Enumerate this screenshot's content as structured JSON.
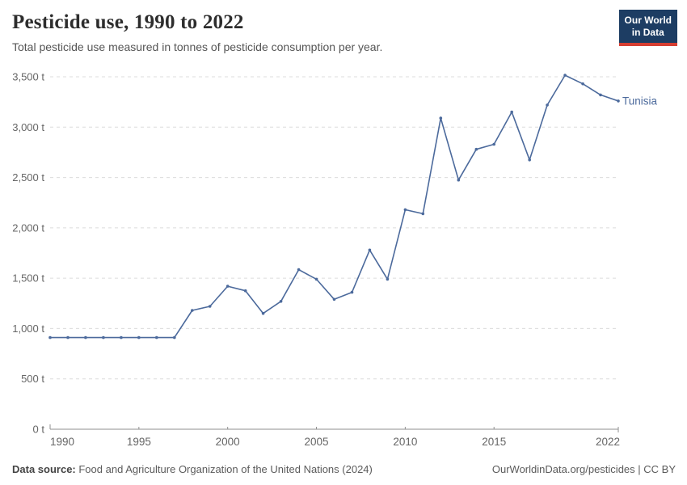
{
  "header": {
    "title": "Pesticide use, 1990 to 2022",
    "subtitle": "Total pesticide use measured in tonnes of pesticide consumption per year.",
    "logo": {
      "line1": "Our World",
      "line2": "in Data"
    }
  },
  "footer": {
    "source_label": "Data source:",
    "source_text": " Food and Agriculture Organization of the United Nations (2024)",
    "attribution": "OurWorldinData.org/pesticides | CC BY"
  },
  "colors": {
    "line": "#4C6A9C",
    "series_label": "#4C6A9C",
    "grid": "#dcdcdc",
    "axis": "#8f8f8f",
    "tick_text": "#666666",
    "title_text": "#2d2d2d",
    "subtitle_text": "#555555",
    "footer_text": "#5b5b5b",
    "logo_bg": "#1d3d63",
    "logo_red": "#d63e32"
  },
  "chart_data": {
    "type": "line",
    "title": "Pesticide use, 1990 to 2022",
    "subtitle": "Total pesticide use measured in tonnes of pesticide consumption per year.",
    "unit": "t",
    "xlabel": "",
    "ylabel": "",
    "x": [
      1990,
      1991,
      1992,
      1993,
      1994,
      1995,
      1996,
      1997,
      1998,
      1999,
      2000,
      2001,
      2002,
      2003,
      2004,
      2005,
      2006,
      2007,
      2008,
      2009,
      2010,
      2011,
      2012,
      2013,
      2014,
      2015,
      2016,
      2017,
      2018,
      2019,
      2020,
      2021,
      2022
    ],
    "series": [
      {
        "name": "Tunisia",
        "color": "#4C6A9C",
        "values": [
          910,
          910,
          910,
          910,
          910,
          910,
          910,
          910,
          1180,
          1220,
          1420,
          1375,
          1150,
          1270,
          1585,
          1490,
          1290,
          1360,
          1780,
          1490,
          2180,
          2140,
          3090,
          2475,
          2780,
          2830,
          3150,
          2675,
          3220,
          3515,
          3430,
          3320,
          3260
        ]
      }
    ],
    "x_ticks": [
      1990,
      1995,
      2000,
      2005,
      2010,
      2015,
      2022
    ],
    "y_ticks": [
      0,
      500,
      1000,
      1500,
      2000,
      2500,
      3000,
      3500
    ],
    "y_tick_suffix": " t",
    "xlim": [
      1990,
      2022
    ],
    "ylim": [
      0,
      3500
    ],
    "grid": "horizontal-dashed",
    "legend": "end-of-line label",
    "markers": true
  }
}
